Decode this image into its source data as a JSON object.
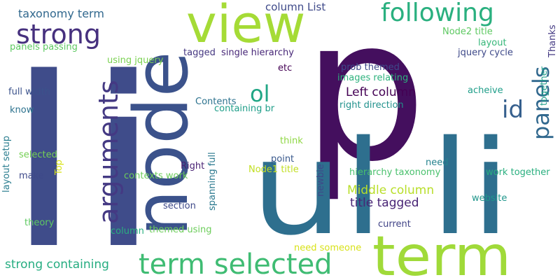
{
  "words": [
    {
      "text": "li",
      "color": "#3f4c8a"
    },
    {
      "text": "p",
      "color": "#440f5e"
    },
    {
      "text": "ul li",
      "color": "#2e6f8e"
    },
    {
      "text": "node",
      "color": "#3b528b"
    },
    {
      "text": "term",
      "color": "#a0da39"
    },
    {
      "text": "view",
      "color": "#a5db36"
    },
    {
      "text": "term selected",
      "color": "#3fbc73"
    },
    {
      "text": "following",
      "color": "#2ab07f"
    },
    {
      "text": "arguments",
      "color": "#443983"
    },
    {
      "text": "strong",
      "color": "#46307e"
    },
    {
      "text": "panels",
      "color": "#31688e"
    },
    {
      "text": "id",
      "color": "#355f8d"
    },
    {
      "text": "ol",
      "color": "#21a685"
    },
    {
      "text": "Left column",
      "color": "#440154"
    },
    {
      "text": "Middle column",
      "color": "#b8de29"
    },
    {
      "text": "title tagged",
      "color": "#482475"
    },
    {
      "text": "taxonomy term",
      "color": "#31688e"
    },
    {
      "text": "column List",
      "color": "#3e4989"
    },
    {
      "text": "strong containing",
      "color": "#26ad81"
    },
    {
      "text": "Node2 title",
      "color": "#5ec962"
    },
    {
      "text": "layout",
      "color": "#35b779"
    },
    {
      "text": "Thanks",
      "color": "#443a83"
    },
    {
      "text": "together",
      "color": "#1f9e89"
    },
    {
      "text": "jquery cycle",
      "color": "#3e4989"
    },
    {
      "text": "panels passing",
      "color": "#5ec962"
    },
    {
      "text": "using jquery",
      "color": "#7ad151"
    },
    {
      "text": "tagged",
      "color": "#453781"
    },
    {
      "text": "single hierarchy",
      "color": "#482878"
    },
    {
      "text": "prob themed",
      "color": "#3e4989"
    },
    {
      "text": "images relating",
      "color": "#2db27d"
    },
    {
      "text": "etc",
      "color": "#440154"
    },
    {
      "text": "full width",
      "color": "#3b528b"
    },
    {
      "text": "Contents",
      "color": "#2c728e"
    },
    {
      "text": "containing br",
      "color": "#1f9e89"
    },
    {
      "text": "right direction",
      "color": "#21918c"
    },
    {
      "text": "acheive",
      "color": "#1f9e89"
    },
    {
      "text": "know",
      "color": "#2c728e"
    },
    {
      "text": "layout setup",
      "color": "#287c8e"
    },
    {
      "text": "think",
      "color": "#8fd744"
    },
    {
      "text": "selected",
      "color": "#75d054"
    },
    {
      "text": "Top",
      "color": "#d8e219"
    },
    {
      "text": "point",
      "color": "#38588c"
    },
    {
      "text": "need",
      "color": "#25838e"
    },
    {
      "text": "Right",
      "color": "#482173"
    },
    {
      "text": "Node1 title",
      "color": "#c2df23"
    },
    {
      "text": "make",
      "color": "#3e4989"
    },
    {
      "text": "contexts work",
      "color": "#6ccd5a"
    },
    {
      "text": "spanning full",
      "color": "#2a788e"
    },
    {
      "text": "newbie",
      "color": "#3e4989"
    },
    {
      "text": "hierarchy taxonomy",
      "color": "#4ac16d"
    },
    {
      "text": "work together",
      "color": "#29af7f"
    },
    {
      "text": "website",
      "color": "#1f968b"
    },
    {
      "text": "section",
      "color": "#3e4989"
    },
    {
      "text": "theory",
      "color": "#5ec962"
    },
    {
      "text": "column",
      "color": "#29af7f"
    },
    {
      "text": "themed using",
      "color": "#6ccd5a"
    },
    {
      "text": "current",
      "color": "#414487"
    },
    {
      "text": "need someone",
      "color": "#d8e219"
    }
  ]
}
